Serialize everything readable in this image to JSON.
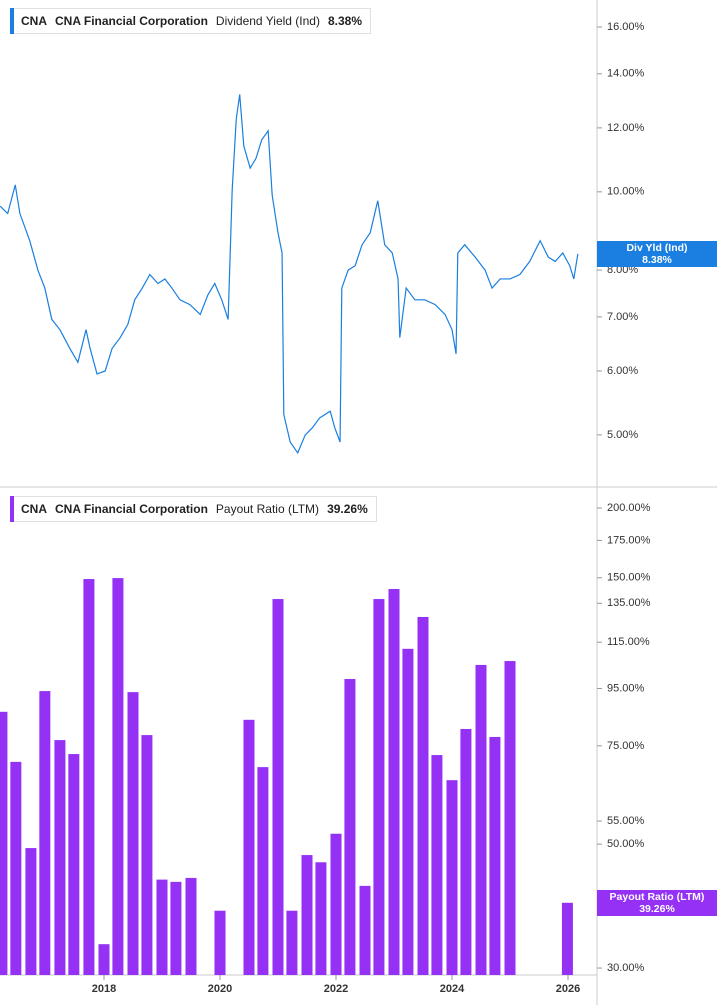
{
  "chart_data": [
    {
      "type": "line",
      "ticker": "CNA",
      "company": "CNA Financial Corporation",
      "yscale": "log",
      "tag_label": "Div Yld (Ind)",
      "current": {
        "value": 8.38,
        "label": "8.38%"
      },
      "xlim": [
        2016.207,
        2026.5
      ],
      "ylim": [
        4.31,
        17.28
      ],
      "yticks": [
        {
          "value": 5,
          "label": "5.00%"
        },
        {
          "value": 6,
          "label": "6.00%"
        },
        {
          "value": 7,
          "label": "7.00%"
        },
        {
          "value": 8,
          "label": "8.00%"
        },
        {
          "value": 10,
          "label": "10.00%"
        },
        {
          "value": 12,
          "label": "12.00%"
        },
        {
          "value": 14,
          "label": "14.00%"
        },
        {
          "value": 16,
          "label": "16.00%"
        }
      ],
      "series": [
        {
          "name": "Dividend Yield (Ind)",
          "color": "#1a7fe0",
          "x": [
            2016.21,
            2016.34,
            2016.47,
            2016.55,
            2016.72,
            2016.86,
            2016.98,
            2017.1,
            2017.24,
            2017.41,
            2017.55,
            2017.69,
            2017.76,
            2017.88,
            2018.02,
            2018.14,
            2018.28,
            2018.41,
            2018.53,
            2018.66,
            2018.79,
            2018.93,
            2019.05,
            2019.17,
            2019.31,
            2019.48,
            2019.66,
            2019.79,
            2019.91,
            2020.03,
            2020.14,
            2020.21,
            2020.28,
            2020.34,
            2020.41,
            2020.52,
            2020.62,
            2020.72,
            2020.83,
            2020.9,
            2021.0,
            2021.07,
            2021.1,
            2021.21,
            2021.34,
            2021.47,
            2021.59,
            2021.72,
            2021.9,
            2021.98,
            2022.07,
            2022.1,
            2022.21,
            2022.33,
            2022.45,
            2022.59,
            2022.72,
            2022.84,
            2022.97,
            2023.07,
            2023.1,
            2023.21,
            2023.36,
            2023.53,
            2023.71,
            2023.88,
            2024.0,
            2024.07,
            2024.1,
            2024.22,
            2024.4,
            2024.57,
            2024.69,
            2024.83,
            2025.0,
            2025.17,
            2025.34,
            2025.52,
            2025.66,
            2025.78,
            2025.91,
            2026.03,
            2026.1,
            2026.17
          ],
          "values": [
            9.6,
            9.4,
            10.2,
            9.4,
            8.7,
            8.0,
            7.6,
            6.95,
            6.75,
            6.4,
            6.15,
            6.75,
            6.4,
            5.95,
            6.0,
            6.4,
            6.6,
            6.85,
            7.35,
            7.6,
            7.9,
            7.7,
            7.8,
            7.6,
            7.35,
            7.25,
            7.05,
            7.45,
            7.7,
            7.35,
            6.95,
            10.05,
            12.3,
            13.2,
            11.4,
            10.7,
            11.0,
            11.6,
            11.9,
            9.9,
            8.9,
            8.4,
            5.3,
            4.9,
            4.75,
            5.0,
            5.1,
            5.25,
            5.35,
            5.1,
            4.9,
            7.6,
            8.0,
            8.1,
            8.6,
            8.9,
            9.75,
            8.6,
            8.4,
            7.8,
            6.6,
            7.6,
            7.35,
            7.35,
            7.25,
            7.05,
            6.75,
            6.3,
            8.4,
            8.6,
            8.3,
            8.0,
            7.6,
            7.8,
            7.8,
            7.9,
            8.2,
            8.7,
            8.3,
            8.2,
            8.4,
            8.1,
            7.8,
            8.38
          ]
        }
      ]
    },
    {
      "type": "bar",
      "ticker": "CNA",
      "company": "CNA Financial Corporation",
      "yscale": "log",
      "current": {
        "value": 39.26,
        "label": "39.26%"
      },
      "xlim": [
        2016.207,
        2026.5
      ],
      "xticks": [
        2018,
        2020,
        2022,
        2024,
        2026
      ],
      "ylim": [
        29.15,
        218.1
      ],
      "yticks": [
        {
          "value": 30,
          "label": "30.00%"
        },
        {
          "value": 50,
          "label": "50.00%"
        },
        {
          "value": 55,
          "label": "55.00%"
        },
        {
          "value": 75,
          "label": "75.00%"
        },
        {
          "value": 95,
          "label": "95.00%"
        },
        {
          "value": 115,
          "label": "115.00%"
        },
        {
          "value": 135,
          "label": "135.00%"
        },
        {
          "value": 150,
          "label": "150.00%"
        },
        {
          "value": 175,
          "label": "175.00%"
        },
        {
          "value": 200,
          "label": "200.00%"
        }
      ],
      "series": [
        {
          "name": "Payout Ratio (LTM)",
          "color": "#9431f5",
          "x": [
            2016.24,
            2016.48,
            2016.74,
            2016.98,
            2017.24,
            2017.48,
            2017.74,
            2018.0,
            2018.24,
            2018.5,
            2018.74,
            2019.0,
            2019.24,
            2019.5,
            2020.0,
            2020.5,
            2020.74,
            2021.0,
            2021.24,
            2021.5,
            2021.74,
            2022.0,
            2022.24,
            2022.5,
            2022.74,
            2023.0,
            2023.24,
            2023.5,
            2023.74,
            2024.0,
            2024.24,
            2024.5,
            2024.74,
            2025.0,
            2025.99
          ],
          "values": [
            86.3,
            70.2,
            49.2,
            94.0,
            76.8,
            72.5,
            149.2,
            33.1,
            149.8,
            93.6,
            78.4,
            43.2,
            42.8,
            43.5,
            38.0,
            83.5,
            68.7,
            137.4,
            38.0,
            47.8,
            46.4,
            52.2,
            98.8,
            42.1,
            137.4,
            143.2,
            111.9,
            127.6,
            72.2,
            65.1,
            80.4,
            104.7,
            77.8,
            106.4,
            39.26
          ]
        }
      ]
    }
  ]
}
